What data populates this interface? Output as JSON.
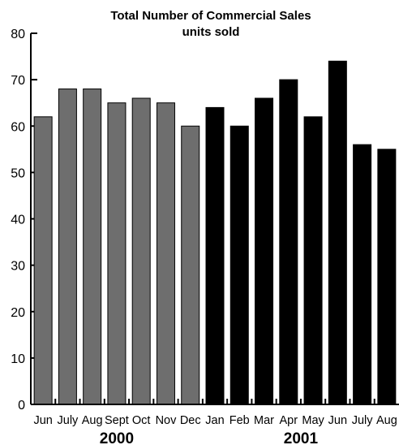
{
  "chart_data": {
    "type": "bar",
    "title": "Total Number of Commercial Sales",
    "subtitle": "units sold",
    "categories": [
      "Jun",
      "July",
      "Aug",
      "Sept",
      "Oct",
      "Nov",
      "Dec",
      "Jan",
      "Feb",
      "Mar",
      "Apr",
      "May",
      "Jun",
      "July",
      "Aug"
    ],
    "values": [
      62,
      68,
      68,
      65,
      66,
      65,
      60,
      64,
      60,
      66,
      70,
      62,
      74,
      56,
      55
    ],
    "year_groups": [
      {
        "label": "2000",
        "start": 0,
        "end": 6,
        "color": "#6e6e6e"
      },
      {
        "label": "2001",
        "start": 7,
        "end": 14,
        "color": "#000000"
      }
    ],
    "ylim": [
      0,
      80
    ],
    "yticks": [
      0,
      10,
      20,
      30,
      40,
      50,
      60,
      70,
      80
    ],
    "grid": false
  }
}
